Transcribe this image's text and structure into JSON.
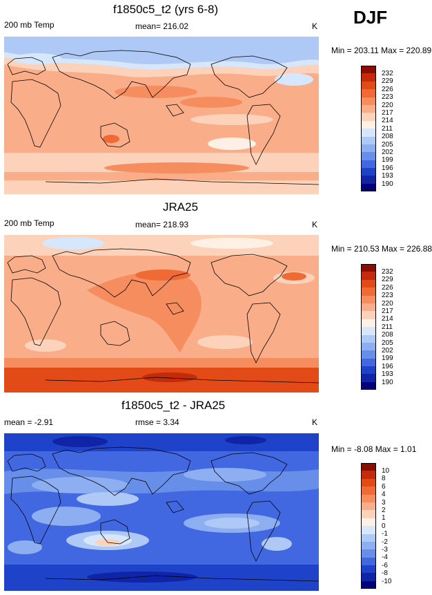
{
  "season": "DJF",
  "panels": [
    {
      "title": "f1850c5_t2 (yrs 6-8)",
      "left_label": "200 mb Temp",
      "center_label": "mean= 216.02",
      "units": "K",
      "minmax": "Min = 203.11 Max = 220.89",
      "colorbar": {
        "labels": [
          "232",
          "229",
          "226",
          "223",
          "220",
          "217",
          "214",
          "211",
          "208",
          "205",
          "202",
          "199",
          "196",
          "193",
          "190"
        ],
        "colors": [
          "#8b0d00",
          "#c32b0b",
          "#e24a17",
          "#ef6a35",
          "#f68d5f",
          "#f9ad88",
          "#fcd3ba",
          "#fff0e6",
          "#d7e7fb",
          "#afc9f6",
          "#8daef1",
          "#678ee8",
          "#4268e1",
          "#1f43c8",
          "#0f24a6",
          "#03007a"
        ]
      }
    },
    {
      "title": "JRA25",
      "left_label": "200 mb Temp",
      "center_label": "mean= 218.93",
      "units": "K",
      "minmax": "Min = 210.53 Max = 226.88",
      "colorbar": {
        "labels": [
          "232",
          "229",
          "226",
          "223",
          "220",
          "217",
          "214",
          "211",
          "208",
          "205",
          "202",
          "199",
          "196",
          "193",
          "190"
        ],
        "colors": [
          "#8b0d00",
          "#c32b0b",
          "#e24a17",
          "#ef6a35",
          "#f68d5f",
          "#f9ad88",
          "#fcd3ba",
          "#fff0e6",
          "#d7e7fb",
          "#afc9f6",
          "#8daef1",
          "#678ee8",
          "#4268e1",
          "#1f43c8",
          "#0f24a6",
          "#03007a"
        ]
      }
    },
    {
      "title": "f1850c5_t2 - JRA25",
      "left_label": "mean =  -2.91",
      "center_label": "rmse =   3.34",
      "units": "K",
      "minmax": "Min =  -8.08 Max =   1.01",
      "colorbar": {
        "labels": [
          "10",
          "8",
          "6",
          "4",
          "3",
          "2",
          "1",
          "0",
          "-1",
          "-2",
          "-3",
          "-4",
          "-6",
          "-8",
          "-10"
        ],
        "colors": [
          "#8b0d00",
          "#c32b0b",
          "#e24a17",
          "#ef6a35",
          "#f68d5f",
          "#f9ad88",
          "#fcd3ba",
          "#fff0e6",
          "#d7e7fb",
          "#afc9f6",
          "#8daef1",
          "#678ee8",
          "#4268e1",
          "#1f43c8",
          "#0f24a6",
          "#03007a"
        ]
      }
    }
  ]
}
